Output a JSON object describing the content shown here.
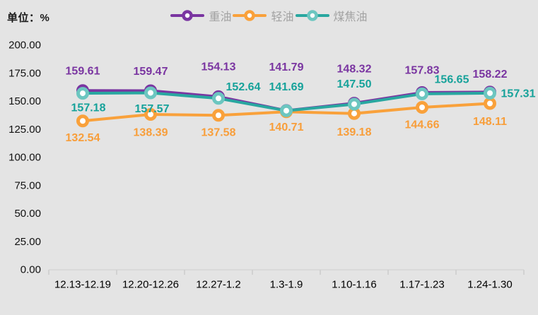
{
  "chart_data": {
    "type": "line",
    "unit_label": "单位：%",
    "categories": [
      "12.13-12.19",
      "12.20-12.26",
      "12.27-1.2",
      "1.3-1.9",
      "1.10-1.16",
      "1.17-1.23",
      "1.24-1.30"
    ],
    "series": [
      {
        "key": "heavy-oil",
        "name": "重油",
        "color": "#7a35a1",
        "marker_ring": "#7a35a1",
        "label_color": "#7a35a1",
        "values": [
          159.61,
          159.47,
          154.13,
          141.79,
          148.32,
          157.83,
          158.22
        ],
        "label_dx": [
          0,
          0,
          0,
          0,
          0,
          0,
          0
        ],
        "label_dy": [
          -27,
          -27,
          -42,
          -61,
          -48,
          -31,
          -25
        ]
      },
      {
        "key": "light-oil",
        "name": "轻油",
        "color": "#f9a13b",
        "marker_ring": "#f9a13b",
        "label_color": "#f89e3a",
        "values": [
          132.54,
          138.39,
          137.58,
          140.71,
          139.18,
          144.66,
          148.11
        ],
        "label_dx": [
          0,
          0,
          0,
          0,
          0,
          0,
          0
        ],
        "label_dy": [
          24,
          26,
          25,
          22,
          27,
          25,
          26
        ]
      },
      {
        "key": "coal-tar",
        "name": "煤焦油",
        "color": "#29a7a0",
        "marker_ring": "#6cc6c0",
        "label_color": "#16a29a",
        "values": [
          157.18,
          157.57,
          152.64,
          141.69,
          147.5,
          156.65,
          157.31
        ],
        "label_dx": [
          8,
          2,
          35,
          0,
          0,
          42,
          40
        ],
        "label_dy": [
          21,
          23,
          -16,
          -33,
          -28,
          -20,
          1
        ]
      }
    ],
    "ylim": [
      0,
      200
    ],
    "ytick_step": 25,
    "ytick_decimals": 2,
    "grid": false,
    "legend_position": "top-center",
    "axis_text_color": "#111111",
    "axis_line_color": "#d5d5d5",
    "tick_color": "#cccccc",
    "background_color": "#e4e4e4"
  }
}
